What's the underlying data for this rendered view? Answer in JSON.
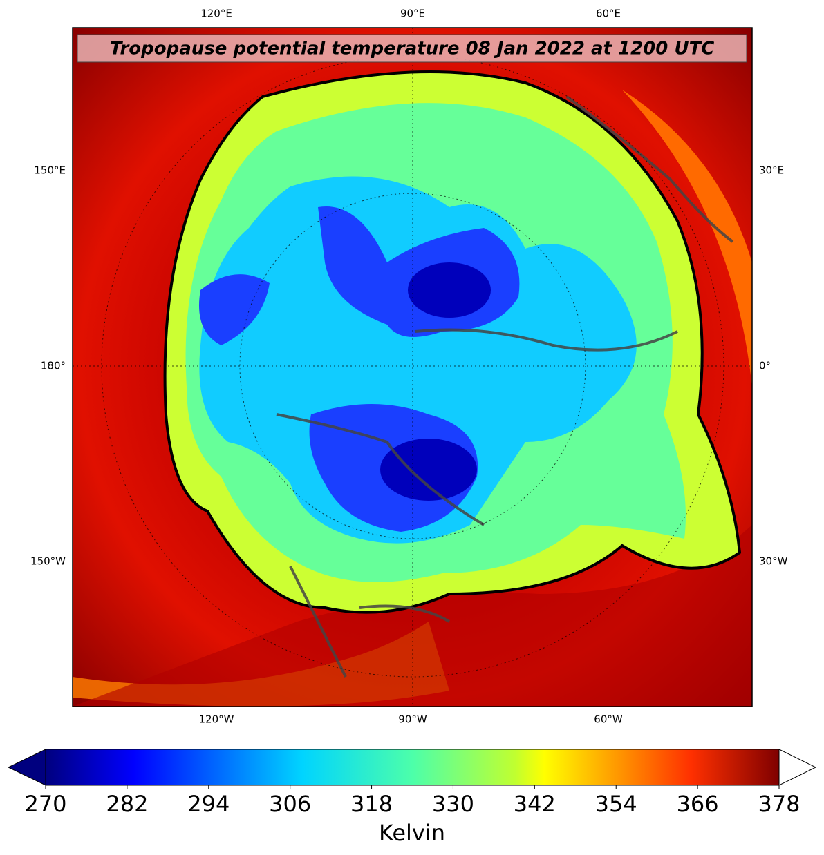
{
  "map": {
    "title": "Tropopause potential temperature 08 Jan 2022 at 1200 UTC",
    "top_labels": [
      "120°E",
      "90°E",
      "60°E"
    ],
    "bottom_labels": [
      "120°W",
      "90°W",
      "60°W"
    ],
    "left_labels": [
      "150°E",
      "180°",
      "150°W"
    ],
    "right_labels": [
      "30°E",
      "0°",
      "30°W"
    ]
  },
  "colorbar": {
    "label": "Kelvin",
    "lim": [
      270,
      378
    ],
    "ticks": [
      270,
      282,
      294,
      306,
      318,
      330,
      342,
      354,
      366,
      378
    ]
  }
}
